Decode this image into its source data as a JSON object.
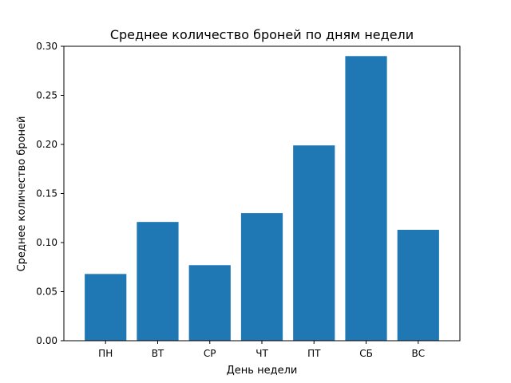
{
  "chart_data": {
    "type": "bar",
    "title": "Среднее количество броней по дням недели",
    "xlabel": "День недели",
    "ylabel": "Среднее количество броней",
    "categories": [
      "ПН",
      "ВТ",
      "СР",
      "ЧТ",
      "ПТ",
      "СБ",
      "ВС"
    ],
    "values": [
      0.068,
      0.121,
      0.077,
      0.13,
      0.199,
      0.29,
      0.113
    ],
    "ylim": [
      0,
      0.3
    ],
    "yticks": [
      "0.00",
      "0.05",
      "0.10",
      "0.15",
      "0.20",
      "0.25",
      "0.30"
    ],
    "bar_color": "#1f77b4",
    "grid": false,
    "legend": "none"
  }
}
